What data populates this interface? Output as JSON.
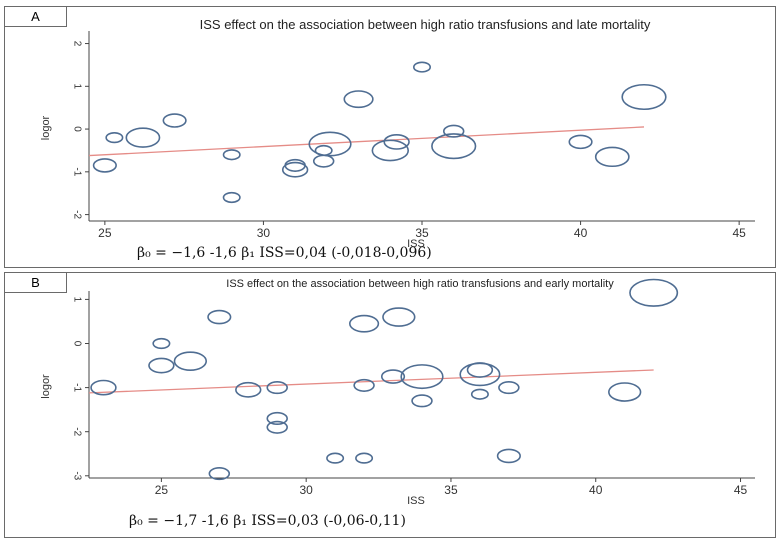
{
  "chart_data": [
    {
      "type": "scatter",
      "panel_label": "A",
      "title": "ISS effect on the association between high ratio transfusions and late mortality",
      "xlabel": "ISS",
      "ylabel": "logor",
      "xlim": [
        24.5,
        45.5
      ],
      "ylim": [
        -2.15,
        2.2
      ],
      "xticks": [
        "25",
        "30",
        "35",
        "40",
        "45"
      ],
      "yticks": [
        "-2",
        "-1",
        "0",
        "1",
        "2"
      ],
      "points": [
        {
          "x": 25.0,
          "y": -0.85,
          "w": 3
        },
        {
          "x": 25.3,
          "y": -0.2,
          "w": 1
        },
        {
          "x": 26.2,
          "y": -0.2,
          "w": 9
        },
        {
          "x": 27.2,
          "y": 0.2,
          "w": 3
        },
        {
          "x": 29.0,
          "y": -0.6,
          "w": 1
        },
        {
          "x": 29.0,
          "y": -1.6,
          "w": 1
        },
        {
          "x": 31.0,
          "y": -0.85,
          "w": 2
        },
        {
          "x": 31.0,
          "y": -0.95,
          "w": 4
        },
        {
          "x": 31.9,
          "y": -0.75,
          "w": 2
        },
        {
          "x": 31.9,
          "y": -0.5,
          "w": 1
        },
        {
          "x": 32.1,
          "y": -0.35,
          "w": 16
        },
        {
          "x": 33.0,
          "y": 0.7,
          "w": 6
        },
        {
          "x": 34.0,
          "y": -0.5,
          "w": 11
        },
        {
          "x": 34.2,
          "y": -0.3,
          "w": 4
        },
        {
          "x": 35.0,
          "y": 1.45,
          "w": 1
        },
        {
          "x": 36.0,
          "y": -0.05,
          "w": 2
        },
        {
          "x": 36.0,
          "y": -0.4,
          "w": 18
        },
        {
          "x": 40.0,
          "y": -0.3,
          "w": 3
        },
        {
          "x": 41.0,
          "y": -0.65,
          "w": 9
        },
        {
          "x": 42.0,
          "y": 0.75,
          "w": 18
        }
      ],
      "fit_line": {
        "x": [
          24.5,
          42.0
        ],
        "y": [
          -0.62,
          0.05
        ]
      },
      "formula": "β₀ = −1,6  -1,6 β₁ ISS=0,04 (-0,018-0,096)"
    },
    {
      "type": "scatter",
      "panel_label": "B",
      "title": "ISS effect on the association between high ratio transfusions and early mortality",
      "xlabel": "ISS",
      "ylabel": "logor",
      "xlim": [
        22.5,
        45.5
      ],
      "ylim": [
        -3.05,
        1.1
      ],
      "xticks": [
        "25",
        "30",
        "35",
        "40",
        "45"
      ],
      "yticks": [
        "-3",
        "-2",
        "-1",
        "0",
        "1"
      ],
      "points": [
        {
          "x": 23.0,
          "y": -1.0,
          "w": 4
        },
        {
          "x": 25.0,
          "y": 0.0,
          "w": 1
        },
        {
          "x": 25.0,
          "y": -0.5,
          "w": 4
        },
        {
          "x": 26.0,
          "y": -0.4,
          "w": 8
        },
        {
          "x": 27.0,
          "y": 0.6,
          "w": 3
        },
        {
          "x": 27.0,
          "y": -2.95,
          "w": 2
        },
        {
          "x": 28.0,
          "y": -1.05,
          "w": 4
        },
        {
          "x": 29.0,
          "y": -1.0,
          "w": 2
        },
        {
          "x": 29.0,
          "y": -1.7,
          "w": 2
        },
        {
          "x": 29.0,
          "y": -1.9,
          "w": 2
        },
        {
          "x": 31.0,
          "y": -2.6,
          "w": 1
        },
        {
          "x": 32.0,
          "y": 0.45,
          "w": 6
        },
        {
          "x": 32.0,
          "y": -0.95,
          "w": 2
        },
        {
          "x": 32.0,
          "y": -2.6,
          "w": 1
        },
        {
          "x": 33.0,
          "y": -0.75,
          "w": 3
        },
        {
          "x": 33.2,
          "y": 0.6,
          "w": 8
        },
        {
          "x": 34.0,
          "y": -0.75,
          "w": 16
        },
        {
          "x": 34.0,
          "y": -1.3,
          "w": 2
        },
        {
          "x": 36.0,
          "y": -0.7,
          "w": 14
        },
        {
          "x": 36.0,
          "y": -0.6,
          "w": 4
        },
        {
          "x": 36.0,
          "y": -1.15,
          "w": 1
        },
        {
          "x": 37.0,
          "y": -1.0,
          "w": 2
        },
        {
          "x": 37.0,
          "y": -2.55,
          "w": 3
        },
        {
          "x": 41.0,
          "y": -1.1,
          "w": 8
        },
        {
          "x": 42.0,
          "y": 1.15,
          "w": 22
        }
      ],
      "fit_line": {
        "x": [
          22.5,
          42.0
        ],
        "y": [
          -1.12,
          -0.6
        ]
      },
      "formula": "β₀ = −1,7  -1,6 β₁ ISS=0,03 (-0,06-0,11)"
    }
  ],
  "colors": {
    "marker": "#4f6d92",
    "fit_line": "#e58c87",
    "axis": "#444444",
    "frame": "#6a6a6a"
  }
}
